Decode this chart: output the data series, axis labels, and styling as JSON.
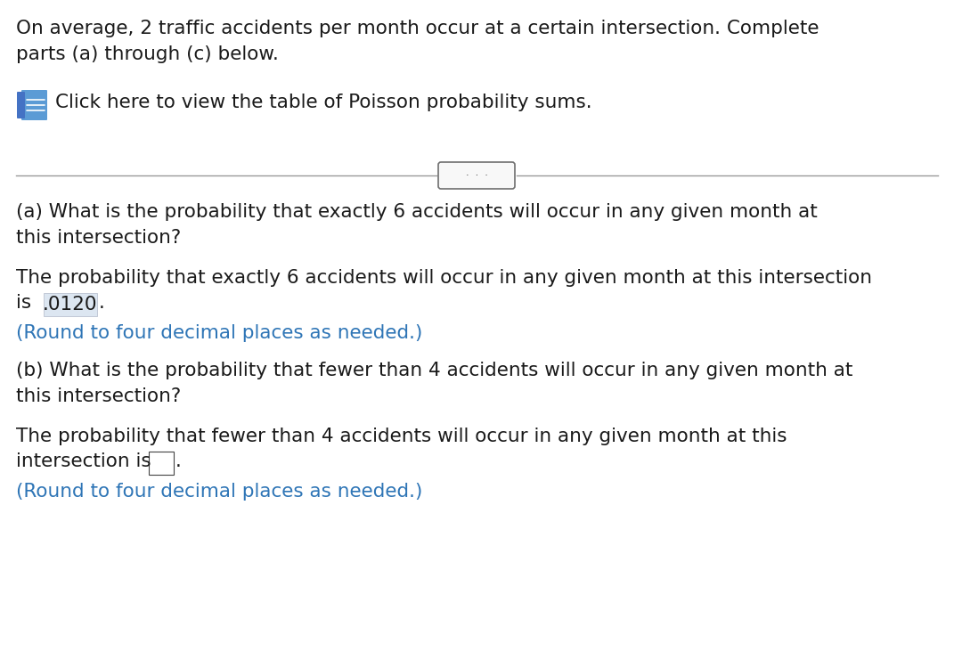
{
  "background_color": "#ffffff",
  "text_color": "#1a1a1a",
  "blue_color": "#2e75b6",
  "line_color": "#999999",
  "highlight_bg": "#dce6f1",
  "intro_text": "On average, 2 traffic accidents per month occur at a certain intersection. Complete\nparts (a) through (c) below.",
  "click_text": "Click here to view the table of Poisson probability sums.",
  "divider_dots": "·  ·  ·",
  "part_a_question": "(a) What is the probability that exactly 6 accidents will occur in any given month at\nthis intersection?",
  "part_a_answer_line1": "The probability that exactly 6 accidents will occur in any given month at this intersection",
  "part_a_answer_is": "is",
  "part_a_value": ".0120",
  "part_a_period": ".",
  "part_a_round": "(Round to four decimal places as needed.)",
  "part_b_question": "(b) What is the probability that fewer than 4 accidents will occur in any given month at\nthis intersection?",
  "part_b_answer_line1": "The probability that fewer than 4 accidents will occur in any given month at this",
  "part_b_answer_line2": "intersection is",
  "part_b_period": ".",
  "part_b_round": "(Round to four decimal places as needed.)",
  "font_size_main": 15.5,
  "icon_color": "#4472c4",
  "icon_color2": "#5b9bd5",
  "btn_border": "#6e6e6e",
  "btn_bg": "#f8f8f8"
}
